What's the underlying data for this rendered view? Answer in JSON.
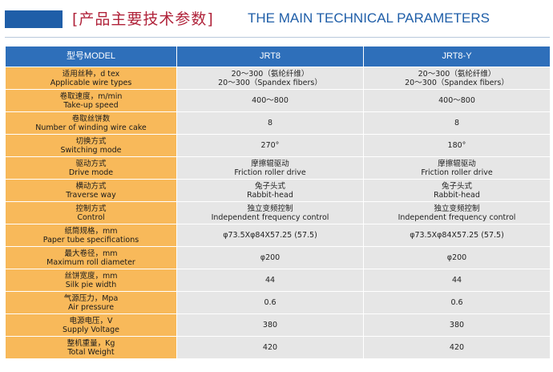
{
  "header": {
    "title_cn": "[产品主要技术参数]",
    "title_en": "THE MAIN TECHNICAL PARAMETERS",
    "accent_color": "#1f5ea8",
    "title_cn_color": "#b0233a"
  },
  "table": {
    "columns": [
      "型号MODEL",
      "JRT8",
      "JRT8-Y"
    ],
    "rows": [
      {
        "label_cn": "适用丝种，d tex",
        "label_en": "Applicable wire types",
        "jrt8": [
          "20～300（氨纶纤维）",
          "20～300（Spandex fibers）"
        ],
        "jrt8y": [
          "20～300（氨纶纤维）",
          "20～300（Spandex fibers）"
        ]
      },
      {
        "label_cn": "卷取速度，m/min",
        "label_en": "Take-up speed",
        "jrt8": [
          "400～800"
        ],
        "jrt8y": [
          "400～800"
        ]
      },
      {
        "label_cn": "卷取丝饼数",
        "label_en": "Number of winding wire cake",
        "jrt8": [
          "8"
        ],
        "jrt8y": [
          "8"
        ]
      },
      {
        "label_cn": "切换方式",
        "label_en": "Switching mode",
        "jrt8": [
          "270°"
        ],
        "jrt8y": [
          "180°"
        ]
      },
      {
        "label_cn": "驱动方式",
        "label_en": "Drive mode",
        "jrt8": [
          "摩擦辊驱动",
          "Friction roller drive"
        ],
        "jrt8y": [
          "摩擦辊驱动",
          "Friction roller drive"
        ]
      },
      {
        "label_cn": "横动方式",
        "label_en": "Traverse way",
        "jrt8": [
          "兔子头式",
          "Rabbit-head"
        ],
        "jrt8y": [
          "兔子头式",
          "Rabbit-head"
        ]
      },
      {
        "label_cn": "控制方式",
        "label_en": "Control",
        "jrt8": [
          "独立变频控制",
          "Independent frequency control"
        ],
        "jrt8y": [
          "独立变频控制",
          "Independent frequency control"
        ]
      },
      {
        "label_cn": "纸筒规格，mm",
        "label_en": "Paper tube specifications",
        "jrt8": [
          "φ73.5Xφ84X57.25 (57.5)"
        ],
        "jrt8y": [
          "φ73.5Xφ84X57.25 (57.5)"
        ]
      },
      {
        "label_cn": "最大卷径，mm",
        "label_en": "Maximum roll diameter",
        "jrt8": [
          "φ200"
        ],
        "jrt8y": [
          "φ200"
        ]
      },
      {
        "label_cn": "丝饼宽度，mm",
        "label_en": "Silk pie width",
        "jrt8": [
          "44"
        ],
        "jrt8y": [
          "44"
        ]
      },
      {
        "label_cn": "气源压力，Mpa",
        "label_en": "Air pressure",
        "jrt8": [
          "0.6"
        ],
        "jrt8y": [
          "0.6"
        ]
      },
      {
        "label_cn": "电源电压，V",
        "label_en": "Supply Voltage",
        "jrt8": [
          "380"
        ],
        "jrt8y": [
          "380"
        ]
      },
      {
        "label_cn": "整机重量，Kg",
        "label_en": "Total Weight",
        "jrt8": [
          "420"
        ],
        "jrt8y": [
          "420"
        ]
      }
    ]
  },
  "colors": {
    "header_row": "#2e6fba",
    "label_cell": "#f8b95a",
    "value_cell": "#e6e6e6"
  }
}
